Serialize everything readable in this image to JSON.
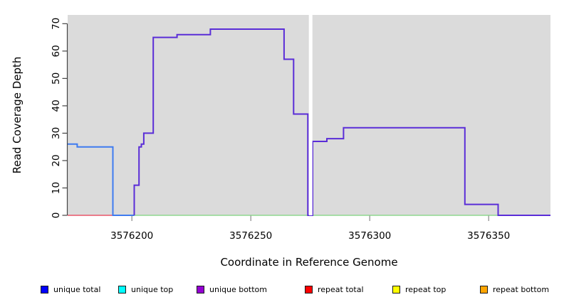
{
  "figure": {
    "title": "",
    "y_axis_label": "Read Coverage Depth",
    "x_axis_label": "Coordinate in Reference Genome"
  },
  "legend": {
    "items": [
      {
        "label": "unique total",
        "color": "#0000FF"
      },
      {
        "label": "unique top",
        "color": "#00FFFF"
      },
      {
        "label": "unique bottom",
        "color": "#9400D3"
      },
      {
        "label": "repeat total",
        "color": "#FF0000"
      },
      {
        "label": "repeat top",
        "color": "#FFFF00"
      },
      {
        "label": "repeat bottom",
        "color": "#FFA500"
      }
    ]
  },
  "chart_data": {
    "type": "line",
    "subtype": "step-coverage-plot",
    "title": "",
    "xlabel": "Coordinate in Reference Genome",
    "ylabel": "Read Coverage Depth",
    "xlim": [
      3576173,
      3576376
    ],
    "ylim": [
      0,
      73.2
    ],
    "x_ticks": [
      3576200,
      3576250,
      3576300,
      3576350
    ],
    "y_ticks": [
      0,
      10,
      20,
      30,
      40,
      50,
      60,
      70
    ],
    "grid": false,
    "legend_position": "bottom",
    "plot_bg": "#DBDBDB",
    "gap": {
      "x_start": 3576274.4,
      "x_end": 3576275.9,
      "note": "white no-data band"
    },
    "series": [
      {
        "id": "repeat-total",
        "name": "repeat total",
        "line_color": "#E8566A",
        "width": 1.6,
        "points": [
          [
            3576173,
            0
          ]
        ],
        "x_end": 3576192
      },
      {
        "id": "zero-baseline",
        "name": "zero baseline",
        "line_color": "#90D890",
        "width": 1.6,
        "points": [
          [
            3576201,
            0
          ]
        ],
        "x_end": 3576354
      },
      {
        "id": "unique-total",
        "name": "unique total",
        "line_color": "#3E7BF0",
        "width": 2,
        "points": [
          [
            3576173,
            26
          ],
          [
            3576177,
            25
          ],
          [
            3576192,
            0
          ]
        ],
        "x_end": 3576201
      },
      {
        "id": "unique-bottom",
        "name": "unique bottom",
        "line_color": "#5A2DD7",
        "width": 2,
        "points": [
          [
            3576201,
            0
          ],
          [
            3576201,
            11
          ],
          [
            3576203,
            25
          ],
          [
            3576204,
            26
          ],
          [
            3576205,
            30
          ],
          [
            3576209,
            65
          ],
          [
            3576219,
            66
          ],
          [
            3576233,
            68
          ],
          [
            3576264,
            57
          ],
          [
            3576268,
            37
          ],
          [
            3576274,
            0
          ],
          [
            3576276,
            27
          ],
          [
            3576282,
            28
          ],
          [
            3576289,
            32
          ],
          [
            3576340,
            4
          ],
          [
            3576354,
            0
          ]
        ],
        "x_end": 3576376
      }
    ]
  }
}
